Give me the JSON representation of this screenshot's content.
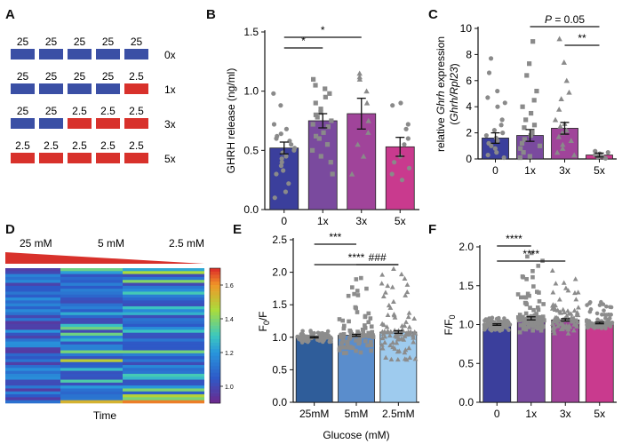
{
  "panel_letters": [
    "A",
    "B",
    "C",
    "D",
    "E",
    "F"
  ],
  "panel_a": {
    "rows": [
      {
        "values": [
          "25",
          "25",
          "25",
          "25",
          "25"
        ],
        "label": "0x",
        "low_count": 0
      },
      {
        "values": [
          "25",
          "25",
          "25",
          "25",
          "2.5"
        ],
        "label": "1x",
        "low_count": 1
      },
      {
        "values": [
          "25",
          "25",
          "2.5",
          "2.5",
          "2.5"
        ],
        "label": "3x",
        "low_count": 3
      },
      {
        "values": [
          "2.5",
          "2.5",
          "2.5",
          "2.5",
          "2.5"
        ],
        "label": "5x",
        "low_count": 5
      }
    ],
    "colors": {
      "high": "#3a4fa5",
      "low": "#d8312b"
    }
  },
  "panel_d": {
    "labels": [
      "25 mM",
      "5 mM",
      "2.5 mM"
    ],
    "xlabel": "Time",
    "colorbar_ticks": [
      "1.6",
      "1.4",
      "1.2",
      "1.0"
    ],
    "colorbar_range": [
      0.9,
      1.7
    ]
  },
  "chart_data": [
    {
      "panel": "B",
      "type": "bar",
      "categories": [
        "0",
        "1x",
        "3x",
        "5x"
      ],
      "values": [
        0.52,
        0.75,
        0.81,
        0.53
      ],
      "errors": [
        0.05,
        0.06,
        0.13,
        0.08
      ],
      "ylabel": "GHRH release (ng/ml)",
      "ylim": [
        0,
        1.5
      ],
      "yticks": [
        "0.0",
        "0.5",
        "1.0",
        "1.5"
      ],
      "colors": [
        "#3b3f9c",
        "#7a4a9e",
        "#a0449a",
        "#c93a8e"
      ],
      "points": [
        [
          0.98,
          0.88,
          0.72,
          0.68,
          0.64,
          0.62,
          0.6,
          0.58,
          0.55,
          0.52,
          0.5,
          0.48,
          0.45,
          0.43,
          0.4,
          0.37,
          0.33,
          0.3,
          0.22,
          0.15,
          0.1
        ],
        [
          1.1,
          1.05,
          1.02,
          0.98,
          0.95,
          0.9,
          0.85,
          0.82,
          0.8,
          0.78,
          0.75,
          0.72,
          0.7,
          0.65,
          0.62,
          0.6,
          0.55,
          0.5,
          0.45,
          0.4,
          0.3
        ],
        [
          1.15,
          1.12,
          1.1,
          1.0,
          0.9,
          0.75,
          0.65,
          0.55,
          0.45,
          0.3
        ],
        [
          0.9,
          0.88,
          0.72,
          0.68,
          0.6,
          0.55,
          0.45,
          0.4,
          0.35,
          0.3,
          0.25
        ]
      ],
      "markers": [
        "circle",
        "square",
        "triangle",
        "circle"
      ],
      "significance": [
        {
          "from": 0,
          "to": 1,
          "label": "*"
        },
        {
          "from": 0,
          "to": 2,
          "label": "*"
        }
      ]
    },
    {
      "panel": "C",
      "type": "bar",
      "categories": [
        "0",
        "1x",
        "3x",
        "5x"
      ],
      "values": [
        1.6,
        1.8,
        2.35,
        0.3
      ],
      "errors": [
        0.4,
        0.45,
        0.45,
        0.15
      ],
      "ylabel": "relative Ghrh expression (Ghrh/Rpl23)",
      "ylabel_parts": [
        "relative ",
        "Ghrh",
        " expression",
        "(",
        "Ghrh",
        "/",
        "Rpl23",
        ")"
      ],
      "ylim": [
        0,
        10
      ],
      "yticks": [
        "0",
        "2",
        "4",
        "6",
        "8",
        "10"
      ],
      "colors": [
        "#3b3f9c",
        "#7a4a9e",
        "#a0449a",
        "#c93a8e"
      ],
      "points": [
        [
          7.7,
          6.6,
          5.2,
          4.7,
          4.3,
          4.0,
          3.0,
          2.6,
          2.2,
          2.0,
          1.8,
          1.6,
          1.4,
          1.2,
          1.0,
          0.8,
          0.5,
          0.3,
          0.1
        ],
        [
          9.0,
          7.3,
          6.4,
          5.2,
          4.5,
          4.0,
          3.5,
          3.0,
          2.6,
          2.4,
          2.0,
          1.8,
          1.5,
          1.2,
          1.0,
          0.8,
          0.5,
          0.2,
          0.1
        ],
        [
          9.2,
          7.4,
          6.0,
          5.1,
          4.6,
          3.8,
          3.0,
          2.7,
          2.5,
          2.2,
          2.0,
          1.7,
          1.4,
          1.1,
          0.8,
          0.5,
          0.3
        ],
        [
          0.6,
          0.5,
          0.4,
          0.3,
          0.2,
          0.1,
          0.05
        ]
      ],
      "markers": [
        "circle",
        "square",
        "triangle",
        "circle"
      ],
      "significance": [
        {
          "from": 1,
          "to": 3,
          "label": "P = 0.05",
          "italic_p": true
        },
        {
          "from": 2,
          "to": 3,
          "label": "**"
        }
      ]
    },
    {
      "panel": "E",
      "type": "bar",
      "categories": [
        "25mM",
        "5mM",
        "2.5mM"
      ],
      "values": [
        1.0,
        1.03,
        1.08
      ],
      "errors": [
        0.01,
        0.015,
        0.02
      ],
      "ylabel": "F0/F",
      "xlabel": "Glucose (mM)",
      "ylim": [
        0,
        2.5
      ],
      "yticks": [
        "0.0",
        "0.5",
        "1.0",
        "1.5",
        "2.0",
        "2.5"
      ],
      "colors": [
        "#2f5d9a",
        "#5a8dcc",
        "#9ecbee"
      ],
      "point_spread": [
        [
          0.92,
          1.1
        ],
        [
          0.75,
          1.95
        ],
        [
          0.65,
          2.15
        ]
      ],
      "markers": [
        "circle",
        "square",
        "triangle"
      ],
      "significance": [
        {
          "from": 0,
          "to": 1,
          "label": "***"
        },
        {
          "from": 1,
          "to": 2,
          "label": "###"
        },
        {
          "from": 0,
          "to": 2,
          "label": "****"
        }
      ]
    },
    {
      "panel": "F",
      "type": "bar",
      "categories": [
        "0",
        "1x",
        "3x",
        "5x"
      ],
      "values": [
        1.0,
        1.08,
        1.06,
        1.02
      ],
      "errors": [
        0.01,
        0.02,
        0.015,
        0.01
      ],
      "ylabel": "F/F0",
      "ylim": [
        0,
        2.0
      ],
      "yticks": [
        "0.0",
        "0.5",
        "1.0",
        "1.5",
        "2.0"
      ],
      "colors": [
        "#3b3f9c",
        "#7a4a9e",
        "#a0449a",
        "#c93a8e"
      ],
      "point_spread": [
        [
          0.92,
          1.1
        ],
        [
          0.9,
          1.98
        ],
        [
          0.88,
          1.7
        ],
        [
          0.95,
          1.35
        ]
      ],
      "markers": [
        "circle",
        "square",
        "triangle",
        "circle"
      ],
      "significance": [
        {
          "from": 0,
          "to": 1,
          "label": "****"
        },
        {
          "from": 0,
          "to": 2,
          "label": "****"
        }
      ]
    }
  ]
}
